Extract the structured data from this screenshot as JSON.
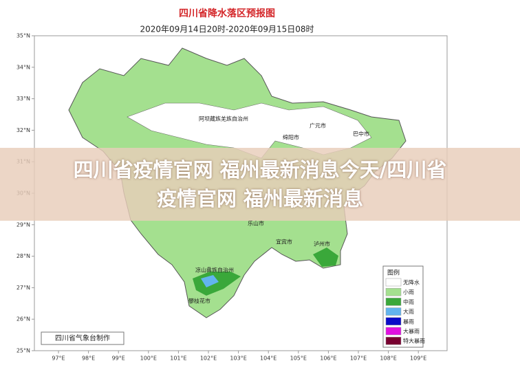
{
  "map": {
    "title": "四川省降水落区预报图",
    "subtitle": "2020年09月14日20时-2020年09月15日08时",
    "lat_labels": [
      "35°N",
      "34°N",
      "33°N",
      "32°N",
      "31°N",
      "30°N",
      "29°N",
      "28°N",
      "27°N",
      "26°N",
      "25°N"
    ],
    "lon_labels": [
      "97°E",
      "98°E",
      "99°E",
      "100°E",
      "101°E",
      "102°E",
      "103°E",
      "104°E",
      "105°E",
      "106°E",
      "107°E",
      "108°E",
      "109°E"
    ],
    "places": [
      "阿坝藏族羌族自治州",
      "广元市",
      "巴中市",
      "绵阳市",
      "乐山市",
      "宜宾市",
      "泸州市",
      "凉山彝族自治州",
      "攀枝花市"
    ],
    "legend": {
      "title": "图例",
      "items": [
        {
          "label": "无降水",
          "color": "#ffffff"
        },
        {
          "label": "小雨",
          "color": "#a4e08f"
        },
        {
          "label": "中雨",
          "color": "#3aa83a"
        },
        {
          "label": "大雨",
          "color": "#62b4ee"
        },
        {
          "label": "暴雨",
          "color": "#0a0ac8"
        },
        {
          "label": "大暴雨",
          "color": "#e010e0"
        },
        {
          "label": "特大暴雨",
          "color": "#780030"
        }
      ]
    },
    "credit": "四川省气象台制作"
  },
  "banner": {
    "lines": [
      "四川省疫情官网 福州最新消息今天/四川省",
      "疫情官网 福州最新消息"
    ]
  }
}
